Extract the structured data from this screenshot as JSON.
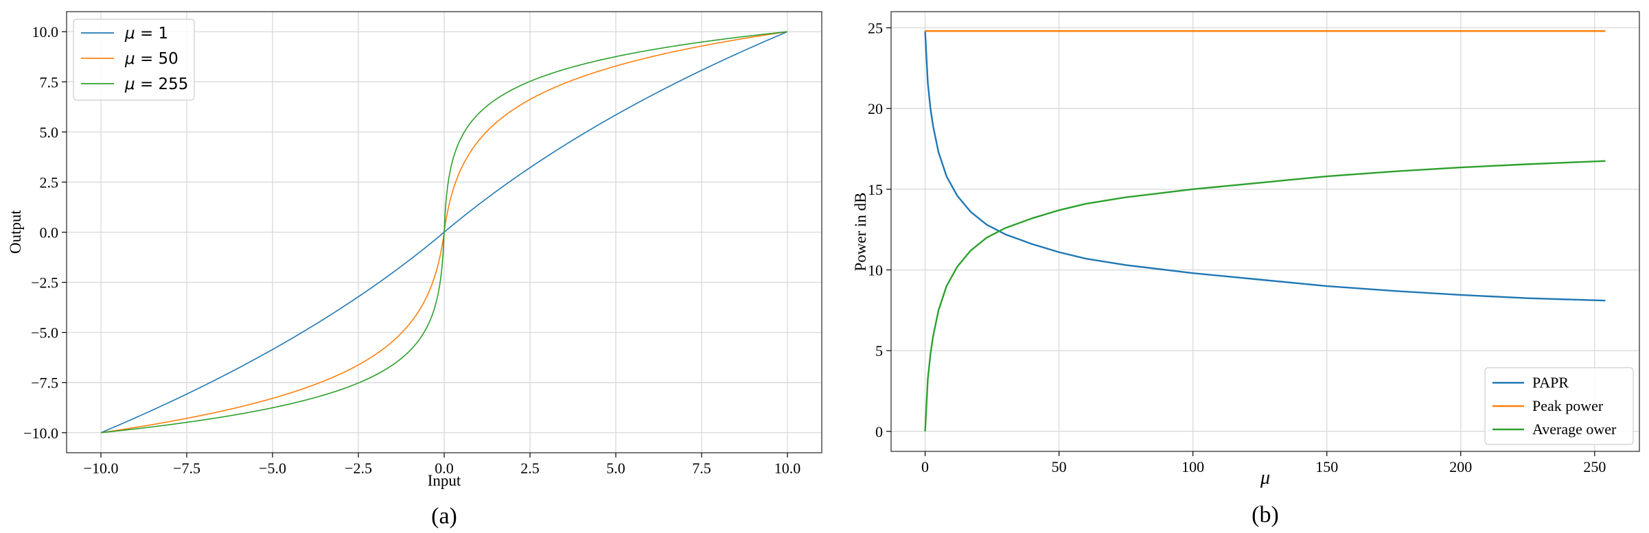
{
  "chart_data": [
    {
      "type": "line",
      "caption": "(a)",
      "xlabel": "Input",
      "ylabel": "Output",
      "xlim": [
        -11,
        11
      ],
      "ylim": [
        -11,
        11
      ],
      "xticks": [
        -10,
        -7.5,
        -5,
        -2.5,
        0,
        2.5,
        5,
        7.5,
        10
      ],
      "yticks": [
        -10,
        -7.5,
        -5,
        -2.5,
        0,
        2.5,
        5,
        7.5,
        10
      ],
      "xtick_labels": [
        "−10.0",
        "−7.5",
        "−5.0",
        "−2.5",
        "0.0",
        "2.5",
        "5.0",
        "7.5",
        "10.0"
      ],
      "ytick_labels": [
        "−10.0",
        "−7.5",
        "−5.0",
        "−2.5",
        "0.0",
        "2.5",
        "5.0",
        "7.5",
        "10.0"
      ],
      "grid": true,
      "legend_position": "top-left",
      "x_range": [
        -10,
        10
      ],
      "series": [
        {
          "mu": 1,
          "name_prefix": "μ",
          "name_suffix": " = 1",
          "color": "#1f77b4"
        },
        {
          "mu": 50,
          "name_prefix": "μ",
          "name_suffix": " = 50",
          "color": "#ff7f0e"
        },
        {
          "mu": 255,
          "name_prefix": "μ",
          "name_suffix": " = 255",
          "color": "#2ca02c"
        }
      ]
    },
    {
      "type": "line",
      "caption": "(b)",
      "xlabel": "μ",
      "ylabel": "Power in dB",
      "xlim": [
        -12.7,
        266.7
      ],
      "ylim": [
        -1.24,
        26.0
      ],
      "xticks": [
        0,
        50,
        100,
        150,
        200,
        250
      ],
      "yticks": [
        0,
        5,
        10,
        15,
        20,
        25
      ],
      "xtick_labels": [
        "0",
        "50",
        "100",
        "150",
        "200",
        "250"
      ],
      "ytick_labels": [
        "0",
        "5",
        "10",
        "15",
        "20",
        "25"
      ],
      "grid": true,
      "legend_position": "bottom-right",
      "x_range": [
        0,
        254
      ],
      "series": [
        {
          "name": "PAPR",
          "color": "#1f77b4",
          "x": [
            0,
            1,
            2,
            3,
            5,
            8,
            12,
            17,
            23,
            30,
            35,
            40,
            50,
            60,
            75,
            100,
            125,
            150,
            175,
            200,
            225,
            254
          ],
          "y": [
            24.8,
            21.6,
            20.0,
            18.9,
            17.3,
            15.8,
            14.6,
            13.6,
            12.8,
            12.2,
            11.9,
            11.6,
            11.1,
            10.7,
            10.3,
            9.8,
            9.4,
            9.0,
            8.7,
            8.45,
            8.25,
            8.1
          ]
        },
        {
          "name": "Peak power",
          "color": "#ff7f0e",
          "x": [
            0,
            254
          ],
          "y": [
            24.8,
            24.8
          ]
        },
        {
          "name": "Average ower",
          "color": "#2ca02c",
          "x": [
            0,
            1,
            2,
            3,
            5,
            8,
            12,
            17,
            23,
            30,
            35,
            40,
            50,
            60,
            75,
            100,
            125,
            150,
            175,
            200,
            225,
            254
          ],
          "y": [
            0,
            3.2,
            4.8,
            5.9,
            7.5,
            9.0,
            10.2,
            11.2,
            12.0,
            12.6,
            12.9,
            13.2,
            13.7,
            14.1,
            14.5,
            15.0,
            15.4,
            15.8,
            16.1,
            16.35,
            16.55,
            16.75
          ]
        }
      ]
    }
  ]
}
